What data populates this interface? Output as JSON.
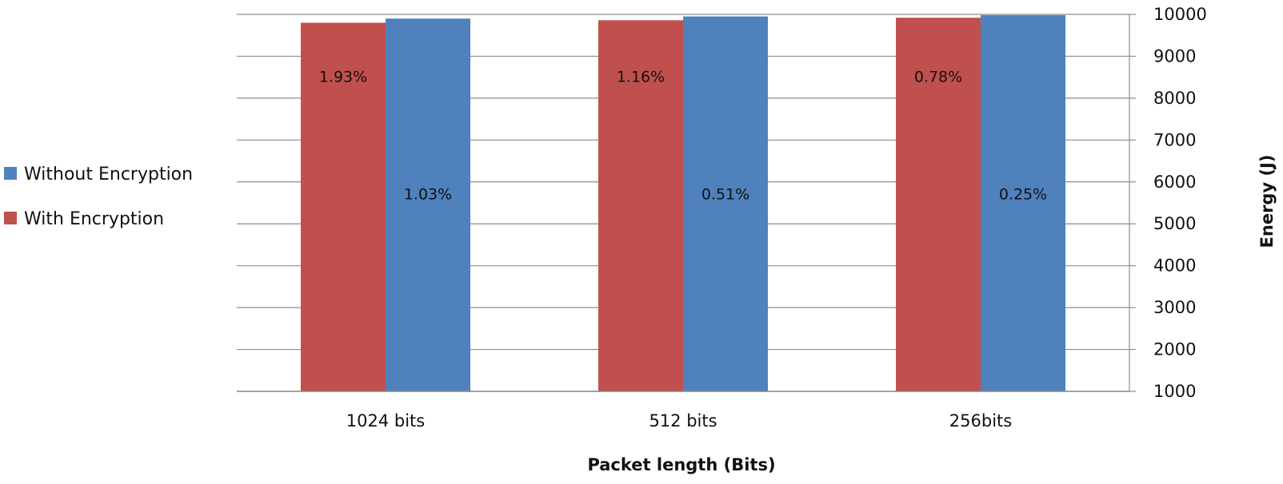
{
  "chart_data": {
    "type": "bar",
    "categories": [
      "1024 bits",
      "512 bits",
      "256bits"
    ],
    "series": [
      {
        "name": "With Encryption",
        "color": "#c0504d",
        "values": [
          9800,
          9860,
          9920
        ],
        "labels": [
          "1.93%",
          "1.16%",
          "0.78%"
        ]
      },
      {
        "name": "Without Encryption",
        "color": "#4f81bd",
        "values": [
          9900,
          9950,
          9980
        ],
        "labels": [
          "1.03%",
          "0.51%",
          "0.25%"
        ]
      }
    ],
    "xlabel": "Packet length (Bits)",
    "ylabel": "Energy (J)",
    "ylim": [
      1000,
      10000
    ],
    "yticks": [
      "1000",
      "2000",
      "3000",
      "4000",
      "5000",
      "6000",
      "7000",
      "8000",
      "9000",
      "10000"
    ],
    "y_axis_side": "right",
    "grid": true,
    "legend_position": "left",
    "legend_order": [
      "Without Encryption",
      "With Encryption"
    ]
  }
}
